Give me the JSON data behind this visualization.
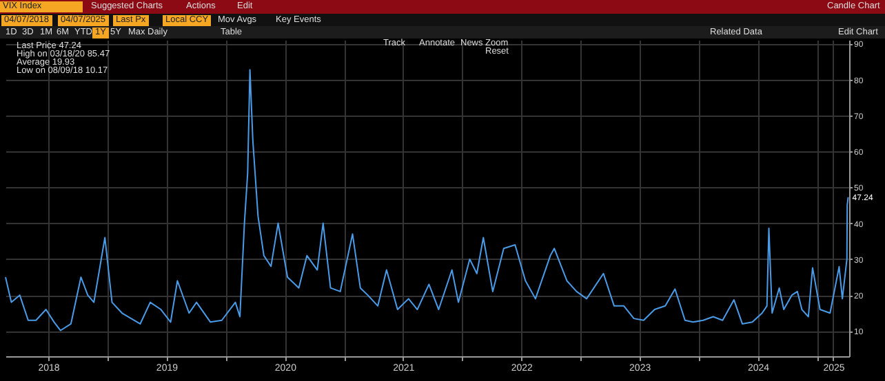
{
  "chart_data": {
    "type": "line",
    "title": "VIX Index",
    "annotations": [
      "Suggested Charts",
      "Actions",
      "Edit",
      "Candle Chart",
      "04/07/2018",
      "04/07/2025",
      "Last Px",
      "Local CCY",
      "Mov Avgs",
      "Key Events",
      "1D",
      "3D",
      "1M",
      "6M",
      "YTD",
      "1Y",
      "5Y",
      "Max",
      "Daily",
      "Table",
      "Related Data",
      "Edit Chart",
      "Track",
      "Annotate",
      "News",
      "Zoom",
      "Reset",
      "Last Price 47.24",
      "High on 03/18/20 85.47",
      "Average 19.93",
      "Low on 08/09/18 10.17",
      {
        "text": "47.24",
        "x": "2025-04-07",
        "y": 47.24
      }
    ],
    "x": [
      "2018-02-20",
      "2018-03-10",
      "2018-04-05",
      "2018-05-01",
      "2018-05-25",
      "2018-06-25",
      "2018-07-20",
      "2018-08-09",
      "2018-09-10",
      "2018-10-11",
      "2018-11-01",
      "2018-11-20",
      "2018-12-24",
      "2019-01-15",
      "2019-02-15",
      "2019-04-12",
      "2019-05-13",
      "2019-06-15",
      "2019-07-15",
      "2019-08-05",
      "2019-09-10",
      "2019-10-03",
      "2019-11-15",
      "2019-12-20",
      "2020-01-31",
      "2020-02-14",
      "2020-02-28",
      "2020-03-09",
      "2020-03-16",
      "2020-03-25",
      "2020-04-10",
      "2020-04-28",
      "2020-05-20",
      "2020-06-11",
      "2020-07-10",
      "2020-08-14",
      "2020-09-08",
      "2020-10-10",
      "2020-10-28",
      "2020-11-20",
      "2020-12-20",
      "2021-01-27",
      "2021-02-20",
      "2021-03-15",
      "2021-04-15",
      "2021-05-12",
      "2021-06-15",
      "2021-07-19",
      "2021-08-15",
      "2021-09-20",
      "2021-10-20",
      "2021-11-30",
      "2021-12-20",
      "2022-01-24",
      "2022-02-15",
      "2022-03-07",
      "2022-04-05",
      "2022-05-09",
      "2022-06-13",
      "2022-07-15",
      "2022-08-15",
      "2022-09-30",
      "2022-10-12",
      "2022-11-20",
      "2022-12-20",
      "2023-01-20",
      "2023-03-13",
      "2023-04-15",
      "2023-05-15",
      "2023-06-15",
      "2023-07-15",
      "2023-08-18",
      "2023-09-20",
      "2023-10-20",
      "2023-11-20",
      "2023-12-15",
      "2024-01-15",
      "2024-02-15",
      "2024-03-15",
      "2024-04-19",
      "2024-05-15",
      "2024-06-15",
      "2024-07-15",
      "2024-07-30",
      "2024-08-05",
      "2024-08-15",
      "2024-09-06",
      "2024-09-20",
      "2024-10-15",
      "2024-11-01",
      "2024-11-15",
      "2024-12-05",
      "2024-12-18",
      "2025-01-10",
      "2025-02-10",
      "2025-03-10",
      "2025-03-20",
      "2025-04-03",
      "2025-04-04",
      "2025-04-07"
    ],
    "series": [
      {
        "color": "#4a9be8",
        "values": [
          25,
          18,
          20,
          13,
          13,
          16,
          12.5,
          10.17,
          12,
          25,
          20,
          18,
          36,
          18,
          15,
          12,
          18,
          16,
          12.5,
          24,
          15,
          18,
          12.5,
          13,
          18,
          14,
          40,
          54,
          82.7,
          63,
          42,
          31,
          28,
          40,
          25,
          22,
          31,
          27,
          40,
          22,
          21,
          37,
          22,
          20,
          17,
          27,
          16,
          19,
          16,
          23,
          16,
          27,
          18,
          30,
          26,
          36,
          21,
          33,
          34,
          24,
          19,
          31,
          33,
          24,
          21,
          19,
          26,
          17,
          17,
          13.5,
          13,
          16,
          17,
          21.7,
          13,
          12.5,
          13,
          14,
          13,
          18.7,
          12,
          12.5,
          15,
          17,
          38.6,
          15,
          22,
          16,
          20,
          21,
          16,
          14,
          27.6,
          16,
          15,
          27.9,
          19,
          30,
          45,
          47.24
        ]
      }
    ],
    "xlim": [
      "2018-02-20",
      "2025-04-10"
    ],
    "xticks": [
      {
        "value": "2018-07-02",
        "label": "2018"
      },
      {
        "value": "2019-01-01",
        "label": null
      },
      {
        "value": "2019-07-02",
        "label": "2019"
      },
      {
        "value": "2020-01-01",
        "label": null
      },
      {
        "value": "2020-07-02",
        "label": "2020"
      },
      {
        "value": "2021-01-01",
        "label": null
      },
      {
        "value": "2021-07-02",
        "label": "2021"
      },
      {
        "value": "2022-01-01",
        "label": null
      },
      {
        "value": "2022-07-02",
        "label": "2022"
      },
      {
        "value": "2023-01-01",
        "label": null
      },
      {
        "value": "2023-07-02",
        "label": "2023"
      },
      {
        "value": "2024-01-01",
        "label": null
      },
      {
        "value": "2024-07-02",
        "label": "2024"
      },
      {
        "value": "2025-01-01",
        "label": null
      },
      {
        "value": "2025-02-20",
        "label": "2025"
      }
    ],
    "ylim": [
      3,
      91
    ],
    "yticks": [
      10,
      20,
      30,
      40,
      50,
      60,
      70,
      80,
      90
    ],
    "grid": true,
    "marker": "none",
    "line_style": "solid"
  }
}
